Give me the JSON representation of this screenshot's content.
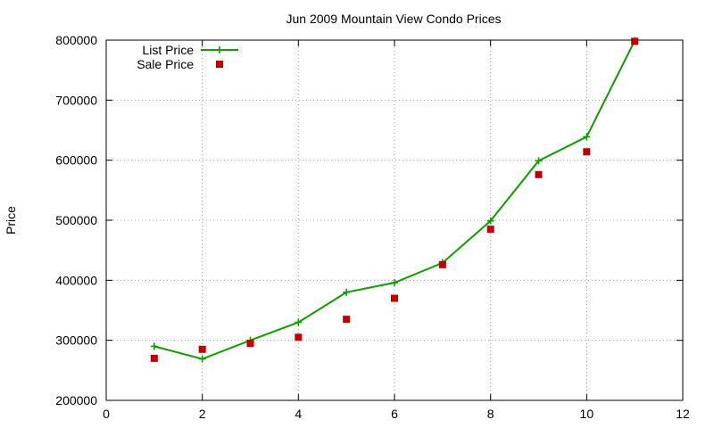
{
  "chart_data": {
    "type": "line",
    "title": "Jun 2009 Mountain View Condo Prices",
    "xlabel": "",
    "ylabel": "Price",
    "xlim": [
      0,
      12
    ],
    "ylim": [
      200000,
      800000
    ],
    "xticks": [
      "0",
      "2",
      "4",
      "6",
      "8",
      "10",
      "12"
    ],
    "yticks": [
      "200000",
      "300000",
      "400000",
      "500000",
      "600000",
      "700000",
      "800000"
    ],
    "grid": true,
    "legend_position": "top-left",
    "series": [
      {
        "name": "List Price",
        "style": "line-with-plus-markers",
        "color": "#109d00",
        "points": [
          {
            "x": 1,
            "y": 290000
          },
          {
            "x": 2,
            "y": 269000
          },
          {
            "x": 3,
            "y": 300000
          },
          {
            "x": 4,
            "y": 330000
          },
          {
            "x": 5,
            "y": 380000
          },
          {
            "x": 6,
            "y": 396000
          },
          {
            "x": 7,
            "y": 429000
          },
          {
            "x": 8,
            "y": 499000
          },
          {
            "x": 9,
            "y": 599000
          },
          {
            "x": 10,
            "y": 639000
          },
          {
            "x": 11,
            "y": 799000
          }
        ]
      },
      {
        "name": "Sale Price",
        "style": "square-markers",
        "color": "#c00000",
        "points": [
          {
            "x": 1,
            "y": 270000
          },
          {
            "x": 2,
            "y": 285000
          },
          {
            "x": 3,
            "y": 295000
          },
          {
            "x": 4,
            "y": 305000
          },
          {
            "x": 5,
            "y": 335000
          },
          {
            "x": 6,
            "y": 370000
          },
          {
            "x": 7,
            "y": 426000
          },
          {
            "x": 8,
            "y": 485000
          },
          {
            "x": 9,
            "y": 576000
          },
          {
            "x": 10,
            "y": 614000
          },
          {
            "x": 11,
            "y": 798000
          }
        ]
      }
    ]
  }
}
